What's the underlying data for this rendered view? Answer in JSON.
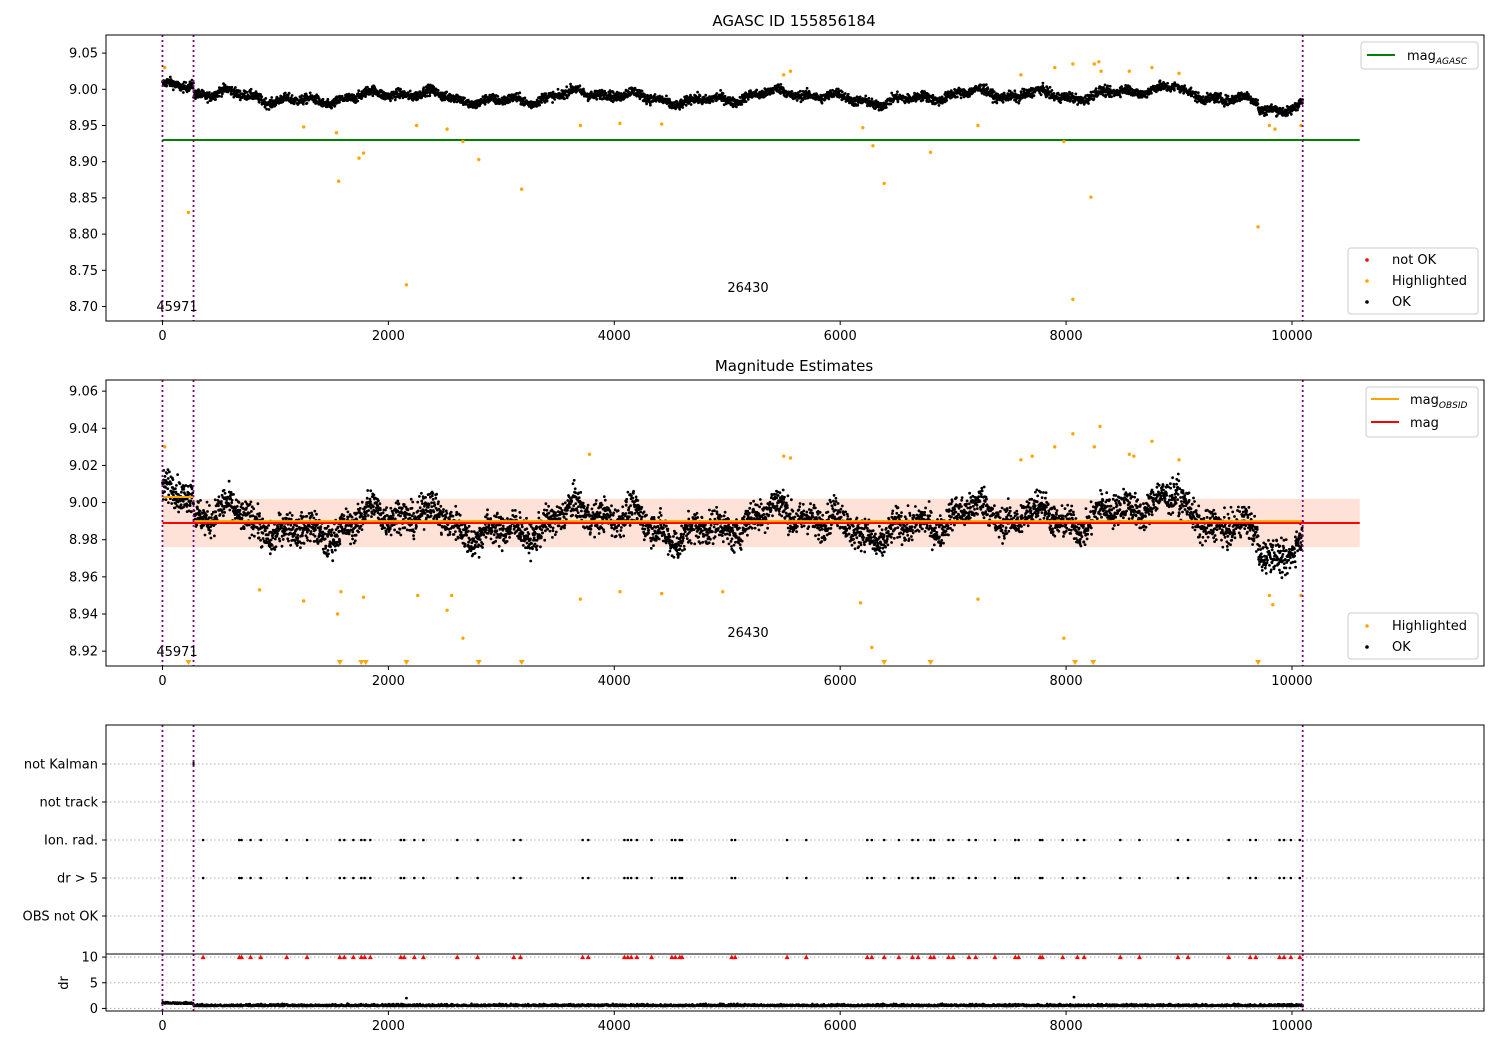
{
  "chart_data": [
    {
      "type": "scatter",
      "title": "AGASC ID 155856184",
      "xlim": [
        -500,
        11700
      ],
      "ylim": [
        8.68,
        9.075
      ],
      "yticks": [
        8.7,
        8.75,
        8.8,
        8.85,
        8.9,
        8.95,
        9.0,
        9.05
      ],
      "xticks": [
        0,
        2000,
        4000,
        6000,
        8000,
        10000
      ],
      "ytick_labels": [
        "8.70",
        "8.75",
        "8.80",
        "8.85",
        "8.90",
        "8.95",
        "9.00",
        "9.05"
      ],
      "xtick_labels": [
        "0",
        "2000",
        "4000",
        "6000",
        "8000",
        "10000"
      ],
      "vlines": [
        0,
        275,
        10095
      ],
      "annotations": [
        {
          "text": "45971",
          "x": 130,
          "y": 8.692
        },
        {
          "text": "26430",
          "x": 5180,
          "y": 8.72
        }
      ],
      "hline": {
        "name": "mag_AGASC",
        "y": 8.93,
        "x": [
          0,
          10600
        ],
        "color": "#008000"
      },
      "legend_lines": {
        "placement": "top-right",
        "entries": [
          {
            "label": "mag",
            "sub": "AGASC",
            "color": "#008000"
          }
        ]
      },
      "legend_points": {
        "placement": "bottom-right",
        "entries": [
          {
            "label": "not OK",
            "color": "#ff0000"
          },
          {
            "label": "Highlighted",
            "color": "#ffa500"
          },
          {
            "label": "OK",
            "color": "#000000"
          }
        ]
      },
      "outliers": [
        [
          20,
          9.03
        ],
        [
          230,
          8.83
        ],
        [
          1250,
          8.948
        ],
        [
          1540,
          8.94
        ],
        [
          1560,
          8.873
        ],
        [
          1740,
          8.905
        ],
        [
          1780,
          8.912
        ],
        [
          2160,
          8.73
        ],
        [
          2250,
          8.95
        ],
        [
          2520,
          8.945
        ],
        [
          2660,
          8.928
        ],
        [
          2800,
          8.903
        ],
        [
          3180,
          8.862
        ],
        [
          3700,
          8.95
        ],
        [
          4050,
          8.953
        ],
        [
          4420,
          8.952
        ],
        [
          5500,
          9.02
        ],
        [
          5560,
          9.025
        ],
        [
          6200,
          8.947
        ],
        [
          6290,
          8.922
        ],
        [
          6390,
          8.87
        ],
        [
          6800,
          8.913
        ],
        [
          7220,
          8.95
        ],
        [
          7600,
          9.02
        ],
        [
          7900,
          9.03
        ],
        [
          7980,
          8.928
        ],
        [
          8060,
          8.71
        ],
        [
          8060,
          9.035
        ],
        [
          8220,
          8.851
        ],
        [
          8250,
          9.035
        ],
        [
          8290,
          9.038
        ],
        [
          8310,
          9.025
        ],
        [
          8560,
          9.025
        ],
        [
          8760,
          9.03
        ],
        [
          9000,
          9.022
        ],
        [
          9700,
          8.81
        ],
        [
          9800,
          8.95
        ],
        [
          9850,
          8.945
        ],
        [
          10080,
          8.95
        ]
      ]
    },
    {
      "type": "scatter",
      "title": "Magnitude Estimates",
      "xlim": [
        -500,
        11700
      ],
      "ylim": [
        8.912,
        9.066
      ],
      "yticks": [
        8.92,
        8.94,
        8.96,
        8.98,
        9.0,
        9.02,
        9.04,
        9.06
      ],
      "xticks": [
        0,
        2000,
        4000,
        6000,
        8000,
        10000
      ],
      "ytick_labels": [
        "8.92",
        "8.94",
        "8.96",
        "8.98",
        "9.00",
        "9.02",
        "9.04",
        "9.06"
      ],
      "xtick_labels": [
        "0",
        "2000",
        "4000",
        "6000",
        "8000",
        "10000"
      ],
      "vlines": [
        0,
        275,
        10095
      ],
      "annotations": [
        {
          "text": "45971",
          "x": 130,
          "y": 8.917
        },
        {
          "text": "26430",
          "x": 5180,
          "y": 8.928
        }
      ],
      "band": {
        "y": [
          8.976,
          9.002
        ],
        "x": [
          0,
          10600
        ],
        "color": "#ffa07a"
      },
      "mag_line": {
        "name": "mag",
        "y": 8.989,
        "x": [
          0,
          10600
        ],
        "color": "#ff0000"
      },
      "obsid_mags": [
        {
          "x": [
            0,
            275
          ],
          "y": 9.003
        },
        {
          "x": [
            275,
            10095
          ],
          "y": 8.99
        }
      ],
      "legend_lines": {
        "placement": "top-right",
        "entries": [
          {
            "label": "mag",
            "sub": "OBSID",
            "color": "#ffa500"
          },
          {
            "label": "mag",
            "sub": "",
            "color": "#ff0000"
          }
        ]
      },
      "legend_points": {
        "placement": "bottom-right",
        "entries": [
          {
            "label": "Highlighted",
            "color": "#ffa500"
          },
          {
            "label": "OK",
            "color": "#000000"
          }
        ]
      },
      "outliers": [
        [
          20,
          9.03
        ],
        [
          860,
          8.953
        ],
        [
          1250,
          8.947
        ],
        [
          1550,
          8.94
        ],
        [
          1580,
          8.952
        ],
        [
          1780,
          8.949
        ],
        [
          2260,
          8.95
        ],
        [
          2520,
          8.942
        ],
        [
          2560,
          8.95
        ],
        [
          2660,
          8.927
        ],
        [
          3700,
          8.948
        ],
        [
          3780,
          9.026
        ],
        [
          4050,
          8.952
        ],
        [
          4420,
          8.951
        ],
        [
          4960,
          8.952
        ],
        [
          5500,
          9.025
        ],
        [
          5560,
          9.024
        ],
        [
          6180,
          8.946
        ],
        [
          6280,
          8.922
        ],
        [
          7220,
          8.948
        ],
        [
          7600,
          9.023
        ],
        [
          7700,
          9.025
        ],
        [
          7900,
          9.03
        ],
        [
          7980,
          8.927
        ],
        [
          8060,
          9.037
        ],
        [
          8250,
          9.03
        ],
        [
          8300,
          9.041
        ],
        [
          8560,
          9.026
        ],
        [
          8600,
          9.025
        ],
        [
          8760,
          9.033
        ],
        [
          9000,
          9.023
        ],
        [
          9800,
          8.95
        ],
        [
          9830,
          8.945
        ],
        [
          10080,
          8.95
        ]
      ],
      "below_range": [
        230,
        1570,
        1760,
        1800,
        2160,
        2800,
        3180,
        6390,
        6800,
        8080,
        8240,
        9700
      ]
    },
    {
      "type": "scatter",
      "title": "",
      "xlim": [
        -500,
        11700
      ],
      "categories": [
        "not Kalman",
        "not track",
        "Ion. rad.",
        "dr > 5",
        "OBS not OK"
      ],
      "vlines": [
        0,
        275,
        10095
      ],
      "not_kalman": [
        275
      ],
      "ion_rad": [
        360,
        680,
        700,
        780,
        870,
        1100,
        1280,
        1570,
        1610,
        1690,
        1760,
        1790,
        1840,
        2110,
        2140,
        2230,
        2310,
        2610,
        2790,
        3110,
        3170,
        3720,
        3770,
        4090,
        4120,
        4150,
        4200,
        4330,
        4510,
        4540,
        4580,
        4600,
        5040,
        5070,
        5530,
        5700,
        6240,
        6280,
        6390,
        6520,
        6640,
        6690,
        6800,
        6830,
        6960,
        7000,
        7140,
        7200,
        7370,
        7550,
        7580,
        7770,
        7790,
        7970,
        8100,
        8160,
        8480,
        8650,
        8990,
        9080,
        9440,
        9630,
        9680,
        9890,
        9930,
        9990,
        10070
      ]
    },
    {
      "type": "scatter",
      "title": "",
      "xlim": [
        -500,
        11700
      ],
      "ylim": [
        -0.5,
        10.6
      ],
      "yticks": [
        0,
        5,
        10
      ],
      "ytick_labels": [
        "0",
        "5",
        "10"
      ],
      "xticks": [
        0,
        2000,
        4000,
        6000,
        8000,
        10000
      ],
      "xtick_labels": [
        "0",
        "2000",
        "4000",
        "6000",
        "8000",
        "10000"
      ],
      "ylabel": "dr",
      "vlines": [
        0,
        275,
        10095
      ],
      "dr_spikes": [
        [
          2160,
          2.0
        ],
        [
          8070,
          2.2
        ]
      ]
    }
  ]
}
